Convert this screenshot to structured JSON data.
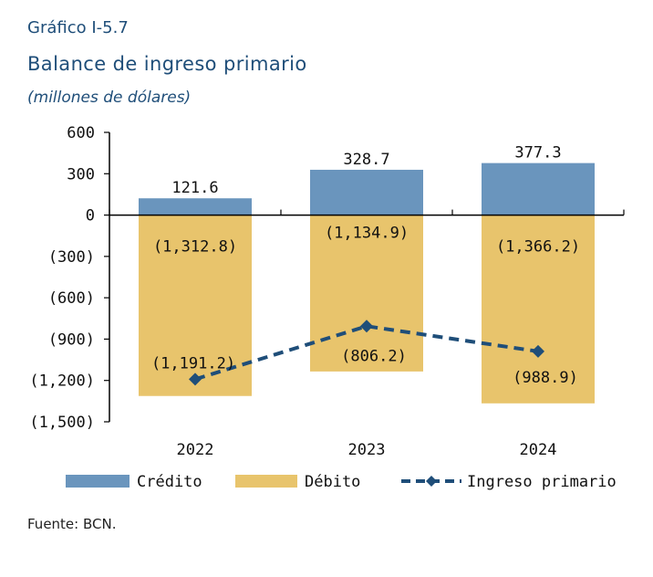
{
  "header": {
    "figure_label": "Gráfico I-5.7",
    "title": "Balance de ingreso primario",
    "units": "(millones de dólares)"
  },
  "footer": {
    "source": "Fuente: BCN."
  },
  "colors": {
    "credito": "#6a95bd",
    "debito": "#e8c46c",
    "ingreso_primario": "#1f4e79",
    "axis": "#000000"
  },
  "chart_data": {
    "type": "bar",
    "categories": [
      "2022",
      "2023",
      "2024"
    ],
    "series": [
      {
        "name": "Crédito",
        "type": "bar",
        "values": [
          121.6,
          328.7,
          377.3
        ],
        "labels": [
          "121.6",
          "328.7",
          "377.3"
        ]
      },
      {
        "name": "Débito",
        "type": "bar",
        "values": [
          -1312.8,
          -1134.9,
          -1366.2
        ],
        "labels": [
          "(1,312.8)",
          "(1,134.9)",
          "(1,366.2)"
        ]
      },
      {
        "name": "Ingreso primario",
        "type": "line",
        "style": "dashed with diamond markers",
        "values": [
          -1191.2,
          -806.2,
          -988.9
        ],
        "labels": [
          "(1,191.2)",
          "(806.2)",
          "(988.9)"
        ]
      }
    ],
    "ylim": [
      -1500,
      600
    ],
    "yticks": [
      600,
      300,
      0,
      -300,
      -600,
      -900,
      -1200,
      -1500
    ],
    "ytick_labels": [
      "600",
      "300",
      "0",
      "(300)",
      "(600)",
      "(900)",
      "(1,200)",
      "(1,500)"
    ],
    "grid": false,
    "legend_position": "bottom"
  }
}
